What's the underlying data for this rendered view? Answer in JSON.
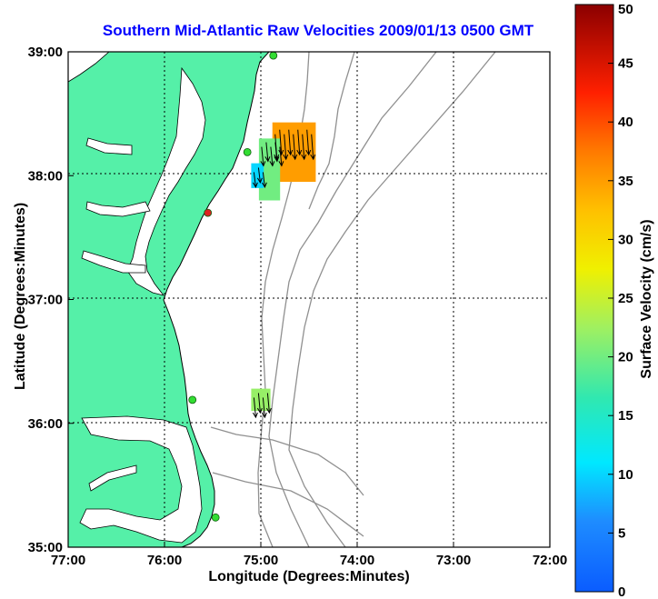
{
  "title": "Southern Mid-Atlantic Raw Velocities 2009/01/13 0500 GMT",
  "xlabel": "Longitude (Degrees:Minutes)",
  "ylabel": "Latitude (Degrees:Minutes)",
  "colorbar_label": "Surface Velocity (cm/s)",
  "colors": {
    "land": "#55f0a8",
    "title": "#0000ff",
    "grid": "#000000",
    "bathymetry": "#909090",
    "station": "#33dd33",
    "station_alt": "#dd2222"
  },
  "chart_data": {
    "type": "map",
    "x_ticks": [
      "77:00",
      "76:00",
      "75:00",
      "74:00",
      "73:00",
      "72:00"
    ],
    "y_ticks": [
      "39:00",
      "38:00",
      "37:00",
      "36:00",
      "35:00"
    ],
    "lon_range": [
      -77,
      -72
    ],
    "lat_range": [
      35,
      39
    ],
    "grid": true,
    "colorbar": {
      "min": 0,
      "max": 50,
      "ticks": [
        "50",
        "45",
        "40",
        "35",
        "30",
        "25",
        "20",
        "15",
        "10",
        "5",
        "0"
      ]
    },
    "stations": [
      {
        "lon": -74.87,
        "lat": 38.97,
        "status": "ok"
      },
      {
        "lon": -75.14,
        "lat": 38.19,
        "status": "ok"
      },
      {
        "lon": -75.55,
        "lat": 37.7,
        "status": "alt"
      },
      {
        "lon": -75.71,
        "lat": 36.19,
        "status": "ok"
      },
      {
        "lon": -75.47,
        "lat": 35.24,
        "status": "ok"
      }
    ],
    "velocity_patches": [
      {
        "lon_min": -74.88,
        "lon_max": -74.43,
        "lat_min": 37.95,
        "lat_max": 38.43,
        "speed_cm_s": 35
      },
      {
        "lon_min": -75.02,
        "lon_max": -74.8,
        "lat_min": 37.8,
        "lat_max": 38.3,
        "speed_cm_s": 20
      },
      {
        "lon_min": -75.1,
        "lon_max": -74.97,
        "lat_min": 37.9,
        "lat_max": 38.1,
        "speed_cm_s": 10
      },
      {
        "lon_min": -75.1,
        "lon_max": -74.9,
        "lat_min": 36.1,
        "lat_max": 36.28,
        "speed_cm_s": 22
      }
    ]
  }
}
